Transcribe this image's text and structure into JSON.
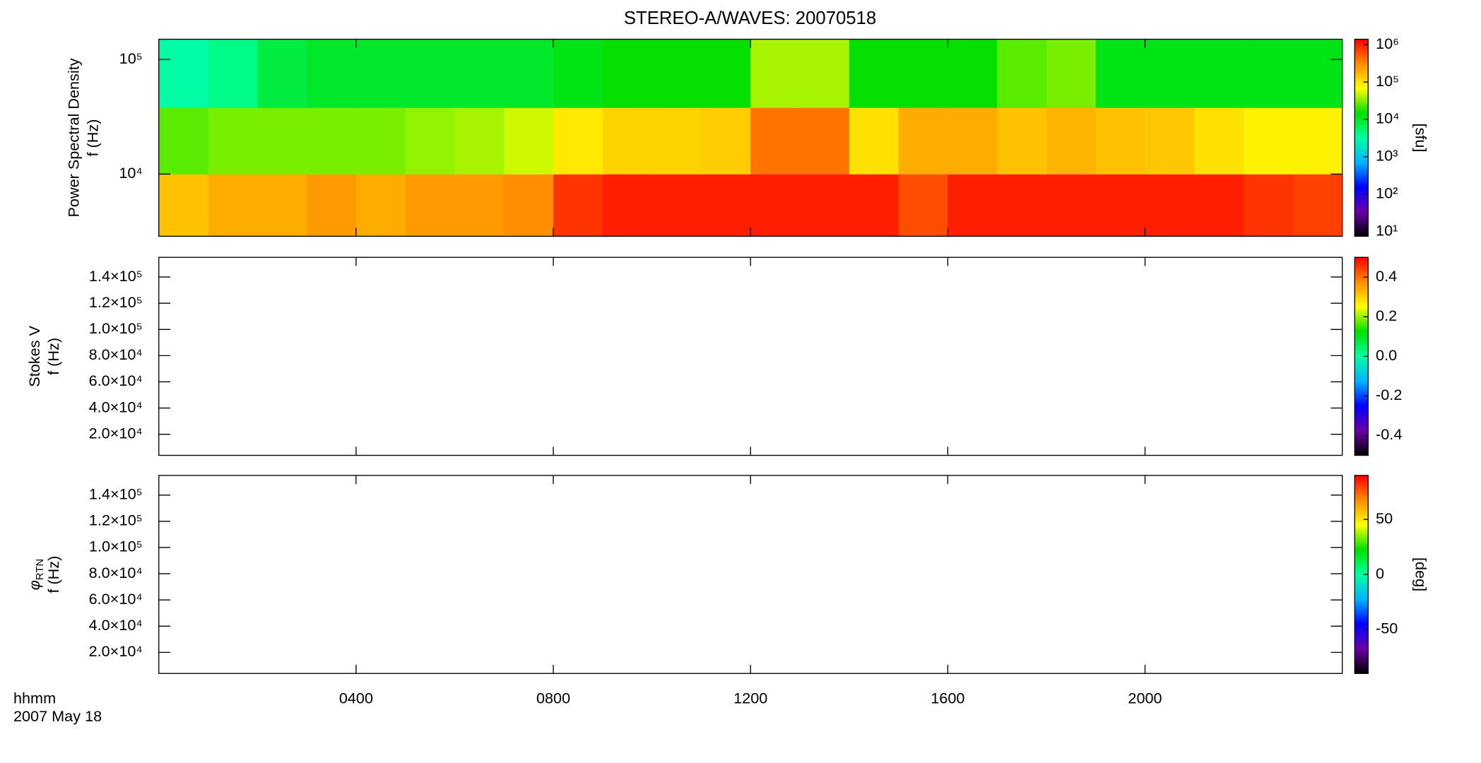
{
  "chart_data": [
    {
      "type": "heatmap",
      "title": "STEREO-A/WAVES: 20070518",
      "ylabel": [
        "Power Spectral Density",
        "f (Hz)"
      ],
      "xlim": [
        0,
        24
      ],
      "xticks": [
        {
          "value": 4,
          "label": "0400"
        },
        {
          "value": 8,
          "label": "0800"
        },
        {
          "value": 12,
          "label": "1200"
        },
        {
          "value": 16,
          "label": "1600"
        },
        {
          "value": 20,
          "label": "2000"
        }
      ],
      "ylim": [
        2870,
        150000
      ],
      "ylog": true,
      "yticks": [
        {
          "value": 10000,
          "label": "10⁴"
        },
        {
          "value": 100000,
          "label": "10⁵"
        }
      ],
      "xbins": [
        0,
        1,
        2,
        3,
        4,
        5,
        6,
        7,
        8,
        9,
        10,
        11,
        12,
        13,
        14,
        15,
        16,
        17,
        18,
        19,
        20,
        21,
        22,
        23,
        24
      ],
      "ybins": [
        2870,
        10000,
        38000,
        150000
      ],
      "z": [
        [
          150000,
          200000,
          200000,
          250000,
          200000,
          250000,
          250000,
          300000,
          800000,
          1000000,
          1000000,
          1000000,
          1000000,
          1000000,
          1000000,
          600000,
          1000000,
          1000000,
          1000000,
          1000000,
          1000000,
          1000000,
          800000,
          700000
        ],
        [
          25000,
          30000,
          30000,
          30000,
          30000,
          35000,
          40000,
          50000,
          90000,
          120000,
          120000,
          130000,
          400000,
          400000,
          100000,
          200000,
          200000,
          150000,
          180000,
          150000,
          140000,
          100000,
          80000,
          80000
        ],
        [
          3000,
          4000,
          8000,
          10000,
          10000,
          10000,
          10000,
          10000,
          12000,
          15000,
          15000,
          15000,
          40000,
          40000,
          15000,
          15000,
          15000,
          25000,
          30000,
          12000,
          12000,
          12000,
          12000,
          12000
        ]
      ],
      "zlim": [
        7.4,
        1400000
      ],
      "zlog": true,
      "zticks": [
        {
          "value": 10,
          "label": "10¹"
        },
        {
          "value": 100,
          "label": "10²"
        },
        {
          "value": 1000,
          "label": "10³"
        },
        {
          "value": 10000,
          "label": "10⁴"
        },
        {
          "value": 100000,
          "label": "10⁵"
        },
        {
          "value": 1000000,
          "label": "10⁶"
        }
      ],
      "zlabel": "[sfu]",
      "colorscale": [
        "#000000",
        "#6a00a8",
        "#0000ff",
        "#00b4ff",
        "#00ffa0",
        "#00e000",
        "#ffff00",
        "#ff8c00",
        "#ff0000"
      ]
    },
    {
      "type": "heatmap",
      "ylabel": [
        "Stokes V",
        "f (Hz)"
      ],
      "xlim": [
        0,
        24
      ],
      "xticks": [
        {
          "value": 4,
          "label": "0400"
        },
        {
          "value": 8,
          "label": "0800"
        },
        {
          "value": 12,
          "label": "1200"
        },
        {
          "value": 16,
          "label": "1600"
        },
        {
          "value": 20,
          "label": "2000"
        }
      ],
      "ylim": [
        3900,
        155000
      ],
      "yticks": [
        {
          "value": 20000,
          "label": "2.0×10⁴"
        },
        {
          "value": 40000,
          "label": "4.0×10⁴"
        },
        {
          "value": 60000,
          "label": "6.0×10⁴"
        },
        {
          "value": 80000,
          "label": "8.0×10⁴"
        },
        {
          "value": 100000,
          "label": "1.0×10⁵"
        },
        {
          "value": 120000,
          "label": "1.2×10⁵"
        },
        {
          "value": 140000,
          "label": "1.4×10⁵"
        }
      ],
      "zlim": [
        -0.5,
        0.5
      ],
      "zticks": [
        -0.4,
        -0.2,
        {
          "value": 0,
          "label": "0.0"
        },
        0.2,
        0.4
      ],
      "colorscale": [
        "#000000",
        "#6a00a8",
        "#0000ff",
        "#00b4ff",
        "#00ffa0",
        "#00e000",
        "#ffff00",
        "#ff8c00",
        "#ff0000"
      ]
    },
    {
      "type": "heatmap",
      "ylabel": [
        {
          "text": "φ",
          "sub": "RTN"
        },
        "f (Hz)"
      ],
      "xlabel": [
        "hhmm",
        "2007 May 18"
      ],
      "xlim": [
        0,
        24
      ],
      "xticks": [
        {
          "value": 4,
          "label": "0400"
        },
        {
          "value": 8,
          "label": "0800"
        },
        {
          "value": 12,
          "label": "1200"
        },
        {
          "value": 16,
          "label": "1600"
        },
        {
          "value": 20,
          "label": "2000"
        }
      ],
      "ylim": [
        3900,
        155000
      ],
      "yticks": [
        {
          "value": 20000,
          "label": "2.0×10⁴"
        },
        {
          "value": 40000,
          "label": "4.0×10⁴"
        },
        {
          "value": 60000,
          "label": "6.0×10⁴"
        },
        {
          "value": 80000,
          "label": "8.0×10⁴"
        },
        {
          "value": 100000,
          "label": "1.0×10⁵"
        },
        {
          "value": 120000,
          "label": "1.2×10⁵"
        },
        {
          "value": 140000,
          "label": "1.4×10⁵"
        }
      ],
      "zlim": [
        -90,
        90
      ],
      "zticks": [
        -50,
        0,
        50
      ],
      "zlabel": "[deg]",
      "colorscale": [
        "#000000",
        "#6a00a8",
        "#0000ff",
        "#00b4ff",
        "#00ffa0",
        "#00e000",
        "#ffff00",
        "#ff8c00",
        "#ff0000"
      ]
    }
  ]
}
